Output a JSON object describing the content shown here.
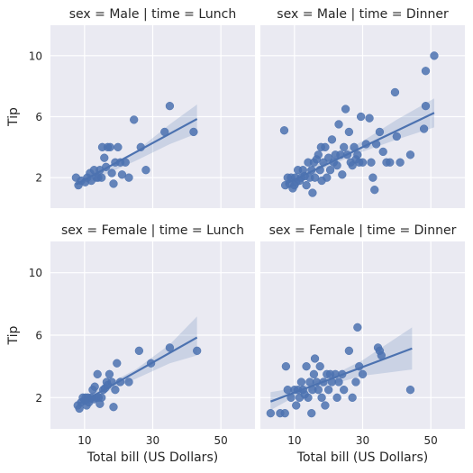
{
  "chart_data": {
    "type": "scatter",
    "title": "",
    "xlabel": "Total bill (US Dollars)",
    "ylabel": "Tip",
    "xlim": [
      0,
      60
    ],
    "ylim": [
      0,
      12
    ],
    "xticks": [
      10,
      30,
      50
    ],
    "yticks": [
      2,
      6,
      10
    ],
    "grid": true,
    "point_color": "#4c72b0",
    "panel_background": "#eaeaf2",
    "panels": [
      {
        "title": "sex = Male | time = Lunch",
        "regression": [
          [
            7.5,
            1.55
          ],
          [
            43,
            5.85
          ]
        ],
        "ci": [
          [
            7.5,
            1.2,
            1.95
          ],
          [
            15,
            2.1,
            2.5
          ],
          [
            25,
            3.1,
            3.7
          ],
          [
            35,
            4.2,
            5.5
          ],
          [
            43,
            4.9,
            6.8
          ]
        ],
        "points": [
          [
            7.5,
            2.0
          ],
          [
            8.2,
            1.5
          ],
          [
            9.0,
            1.8
          ],
          [
            10.2,
            1.7
          ],
          [
            10.8,
            2.0
          ],
          [
            11.6,
            2.3
          ],
          [
            12.0,
            1.8
          ],
          [
            12.8,
            2.5
          ],
          [
            13.5,
            2.0
          ],
          [
            14.0,
            2.0
          ],
          [
            14.5,
            2.5
          ],
          [
            15.0,
            2.0
          ],
          [
            15.2,
            4.0
          ],
          [
            15.8,
            3.3
          ],
          [
            16.3,
            2.7
          ],
          [
            16.8,
            4.0
          ],
          [
            17.5,
            4.0
          ],
          [
            18.0,
            2.3
          ],
          [
            18.5,
            1.6
          ],
          [
            19.0,
            3.0
          ],
          [
            19.8,
            4.0
          ],
          [
            20.5,
            3.0
          ],
          [
            21.0,
            2.2
          ],
          [
            22.0,
            3.0
          ],
          [
            23.0,
            2.0
          ],
          [
            24.5,
            5.8
          ],
          [
            26.5,
            4.0
          ],
          [
            28.0,
            2.5
          ],
          [
            33.5,
            5.0
          ],
          [
            35.0,
            6.7
          ],
          [
            42.0,
            5.0
          ]
        ]
      },
      {
        "title": "sex = Male | time = Dinner",
        "regression": [
          [
            7.5,
            1.6
          ],
          [
            51,
            6.25
          ]
        ],
        "ci": [
          [
            7.5,
            1.2,
            2.0
          ],
          [
            20,
            2.75,
            3.2
          ],
          [
            30,
            3.7,
            4.4
          ],
          [
            40,
            4.5,
            5.8
          ],
          [
            51,
            5.3,
            7.2
          ]
        ],
        "points": [
          [
            7.0,
            5.1
          ],
          [
            7.3,
            1.5
          ],
          [
            8.0,
            2.0
          ],
          [
            8.5,
            1.6
          ],
          [
            9.0,
            2.0
          ],
          [
            9.5,
            1.3
          ],
          [
            10.0,
            1.5
          ],
          [
            10.2,
            2.0
          ],
          [
            10.5,
            1.7
          ],
          [
            11.0,
            2.5
          ],
          [
            11.5,
            1.8
          ],
          [
            12.0,
            2.0
          ],
          [
            12.5,
            2.5
          ],
          [
            13.0,
            2.1
          ],
          [
            13.5,
            1.5
          ],
          [
            14.0,
            3.0
          ],
          [
            14.5,
            2.0
          ],
          [
            15.0,
            2.5
          ],
          [
            15.3,
            1.0
          ],
          [
            15.7,
            3.0
          ],
          [
            16.0,
            2.0
          ],
          [
            16.5,
            3.2
          ],
          [
            17.0,
            3.5
          ],
          [
            17.5,
            2.5
          ],
          [
            17.8,
            4.0
          ],
          [
            18.0,
            1.8
          ],
          [
            18.5,
            3.0
          ],
          [
            19.0,
            4.0
          ],
          [
            19.5,
            2.0
          ],
          [
            20.0,
            3.3
          ],
          [
            20.5,
            2.5
          ],
          [
            21.0,
            4.5
          ],
          [
            21.5,
            3.0
          ],
          [
            22.0,
            3.5
          ],
          [
            22.5,
            2.8
          ],
          [
            23.0,
            5.5
          ],
          [
            23.5,
            3.5
          ],
          [
            24.0,
            2.2
          ],
          [
            24.5,
            4.0
          ],
          [
            25.0,
            6.5
          ],
          [
            25.5,
            3.5
          ],
          [
            26.0,
            5.0
          ],
          [
            26.5,
            3.0
          ],
          [
            27.0,
            2.8
          ],
          [
            27.5,
            4.0
          ],
          [
            28.0,
            3.2
          ],
          [
            28.5,
            3.5
          ],
          [
            29.0,
            3.0
          ],
          [
            29.5,
            6.0
          ],
          [
            30.0,
            3.0
          ],
          [
            31.0,
            4.2
          ],
          [
            32.0,
            5.9
          ],
          [
            32.5,
            3.0
          ],
          [
            33.0,
            2.0
          ],
          [
            33.5,
            1.2
          ],
          [
            34.0,
            4.2
          ],
          [
            35.0,
            5.0
          ],
          [
            36.0,
            3.7
          ],
          [
            37.0,
            3.0
          ],
          [
            38.0,
            3.0
          ],
          [
            39.5,
            7.6
          ],
          [
            40.0,
            4.7
          ],
          [
            41.0,
            3.0
          ],
          [
            44.0,
            3.5
          ],
          [
            48.0,
            5.2
          ],
          [
            48.5,
            6.7
          ],
          [
            48.5,
            9.0
          ],
          [
            51.0,
            10.0
          ]
        ]
      },
      {
        "title": "sex = Female | time = Lunch",
        "regression": [
          [
            8.0,
            1.55
          ],
          [
            43,
            5.85
          ]
        ],
        "ci": [
          [
            8.0,
            1.3,
            1.8
          ],
          [
            15,
            2.25,
            2.65
          ],
          [
            25,
            3.2,
            3.8
          ],
          [
            35,
            4.2,
            5.4
          ],
          [
            43,
            4.7,
            7.2
          ]
        ],
        "points": [
          [
            8.0,
            1.5
          ],
          [
            8.5,
            1.3
          ],
          [
            9.0,
            1.7
          ],
          [
            9.5,
            2.0
          ],
          [
            10.0,
            1.8
          ],
          [
            10.3,
            2.0
          ],
          [
            10.6,
            1.5
          ],
          [
            11.0,
            2.0
          ],
          [
            11.3,
            1.7
          ],
          [
            11.6,
            1.9
          ],
          [
            12.0,
            2.0
          ],
          [
            12.4,
            2.5
          ],
          [
            12.8,
            1.9
          ],
          [
            13.0,
            2.7
          ],
          [
            13.4,
            2.0
          ],
          [
            13.8,
            3.5
          ],
          [
            14.1,
            2.0
          ],
          [
            14.5,
            1.6
          ],
          [
            15.0,
            2.0
          ],
          [
            15.5,
            2.5
          ],
          [
            16.0,
            2.6
          ],
          [
            16.5,
            3.0
          ],
          [
            16.8,
            2.8
          ],
          [
            17.3,
            3.5
          ],
          [
            18.0,
            3.0
          ],
          [
            18.5,
            1.4
          ],
          [
            19.0,
            2.5
          ],
          [
            19.5,
            4.2
          ],
          [
            20.5,
            3.0
          ],
          [
            23.0,
            3.0
          ],
          [
            26.0,
            5.0
          ],
          [
            29.5,
            4.2
          ],
          [
            35.0,
            5.2
          ],
          [
            43.0,
            5.0
          ]
        ]
      },
      {
        "title": "sex = Female | time = Dinner",
        "regression": [
          [
            3.0,
            1.75
          ],
          [
            44.5,
            5.15
          ]
        ],
        "ci": [
          [
            3.0,
            1.2,
            2.35
          ],
          [
            10,
            2.05,
            2.6
          ],
          [
            20,
            2.8,
            3.3
          ],
          [
            30,
            3.4,
            4.4
          ],
          [
            44.5,
            3.8,
            6.5
          ]
        ],
        "points": [
          [
            3.0,
            1.0
          ],
          [
            5.8,
            1.0
          ],
          [
            7.2,
            1.0
          ],
          [
            7.5,
            4.0
          ],
          [
            8.0,
            2.5
          ],
          [
            9.0,
            2.0
          ],
          [
            10.0,
            2.5
          ],
          [
            10.5,
            1.5
          ],
          [
            11.0,
            2.5
          ],
          [
            11.5,
            2.0
          ],
          [
            12.0,
            3.0
          ],
          [
            12.5,
            2.5
          ],
          [
            13.0,
            2.2
          ],
          [
            13.5,
            4.0
          ],
          [
            14.0,
            2.0
          ],
          [
            14.5,
            3.0
          ],
          [
            15.0,
            1.0
          ],
          [
            15.3,
            2.5
          ],
          [
            15.7,
            3.5
          ],
          [
            16.0,
            4.5
          ],
          [
            16.5,
            3.0
          ],
          [
            17.0,
            2.5
          ],
          [
            17.5,
            4.0
          ],
          [
            18.0,
            2.0
          ],
          [
            18.5,
            3.0
          ],
          [
            19.0,
            1.5
          ],
          [
            19.5,
            3.5
          ],
          [
            20.0,
            2.5
          ],
          [
            20.5,
            3.5
          ],
          [
            21.0,
            3.0
          ],
          [
            22.0,
            3.5
          ],
          [
            22.5,
            2.0
          ],
          [
            23.0,
            3.0
          ],
          [
            24.0,
            3.5
          ],
          [
            24.5,
            2.5
          ],
          [
            26.0,
            5.0
          ],
          [
            27.0,
            2.0
          ],
          [
            28.0,
            3.0
          ],
          [
            28.5,
            6.5
          ],
          [
            29.0,
            4.0
          ],
          [
            30.0,
            3.5
          ],
          [
            34.5,
            5.2
          ],
          [
            35.0,
            5.0
          ],
          [
            35.5,
            4.7
          ],
          [
            44.0,
            2.5
          ]
        ]
      }
    ]
  }
}
